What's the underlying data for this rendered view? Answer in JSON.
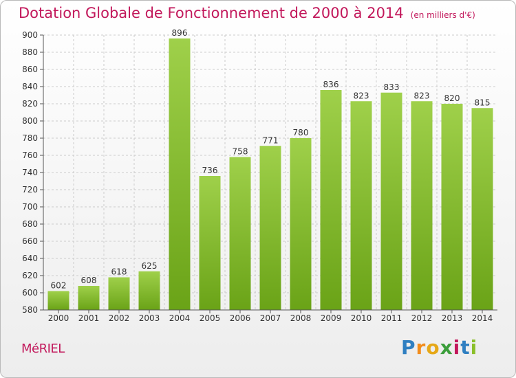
{
  "header": {
    "title": "Dotation Globale de Fonctionnement de 2000 à 2014",
    "unit": "(en milliers d'€)"
  },
  "footer": {
    "commune": "MéRIEL",
    "logo": "Proxiti"
  },
  "colors": {
    "bar_top": "#9fd04a",
    "bar_bottom": "#6aa317",
    "title": "#c2185b",
    "grid": "#cccccc",
    "axis": "#555555"
  },
  "chart_data": {
    "type": "bar",
    "title": "Dotation Globale de Fonctionnement de 2000 à 2014",
    "categories": [
      "2000",
      "2001",
      "2002",
      "2003",
      "2004",
      "2005",
      "2006",
      "2007",
      "2008",
      "2009",
      "2010",
      "2011",
      "2012",
      "2013",
      "2014"
    ],
    "values": [
      602,
      608,
      618,
      625,
      896,
      736,
      758,
      771,
      780,
      836,
      823,
      833,
      823,
      820,
      815
    ],
    "ylim": [
      580,
      900
    ],
    "yticks": [
      580,
      600,
      620,
      640,
      660,
      680,
      700,
      720,
      740,
      760,
      780,
      800,
      820,
      840,
      860,
      880,
      900
    ],
    "grid": true,
    "data_labels": true
  }
}
